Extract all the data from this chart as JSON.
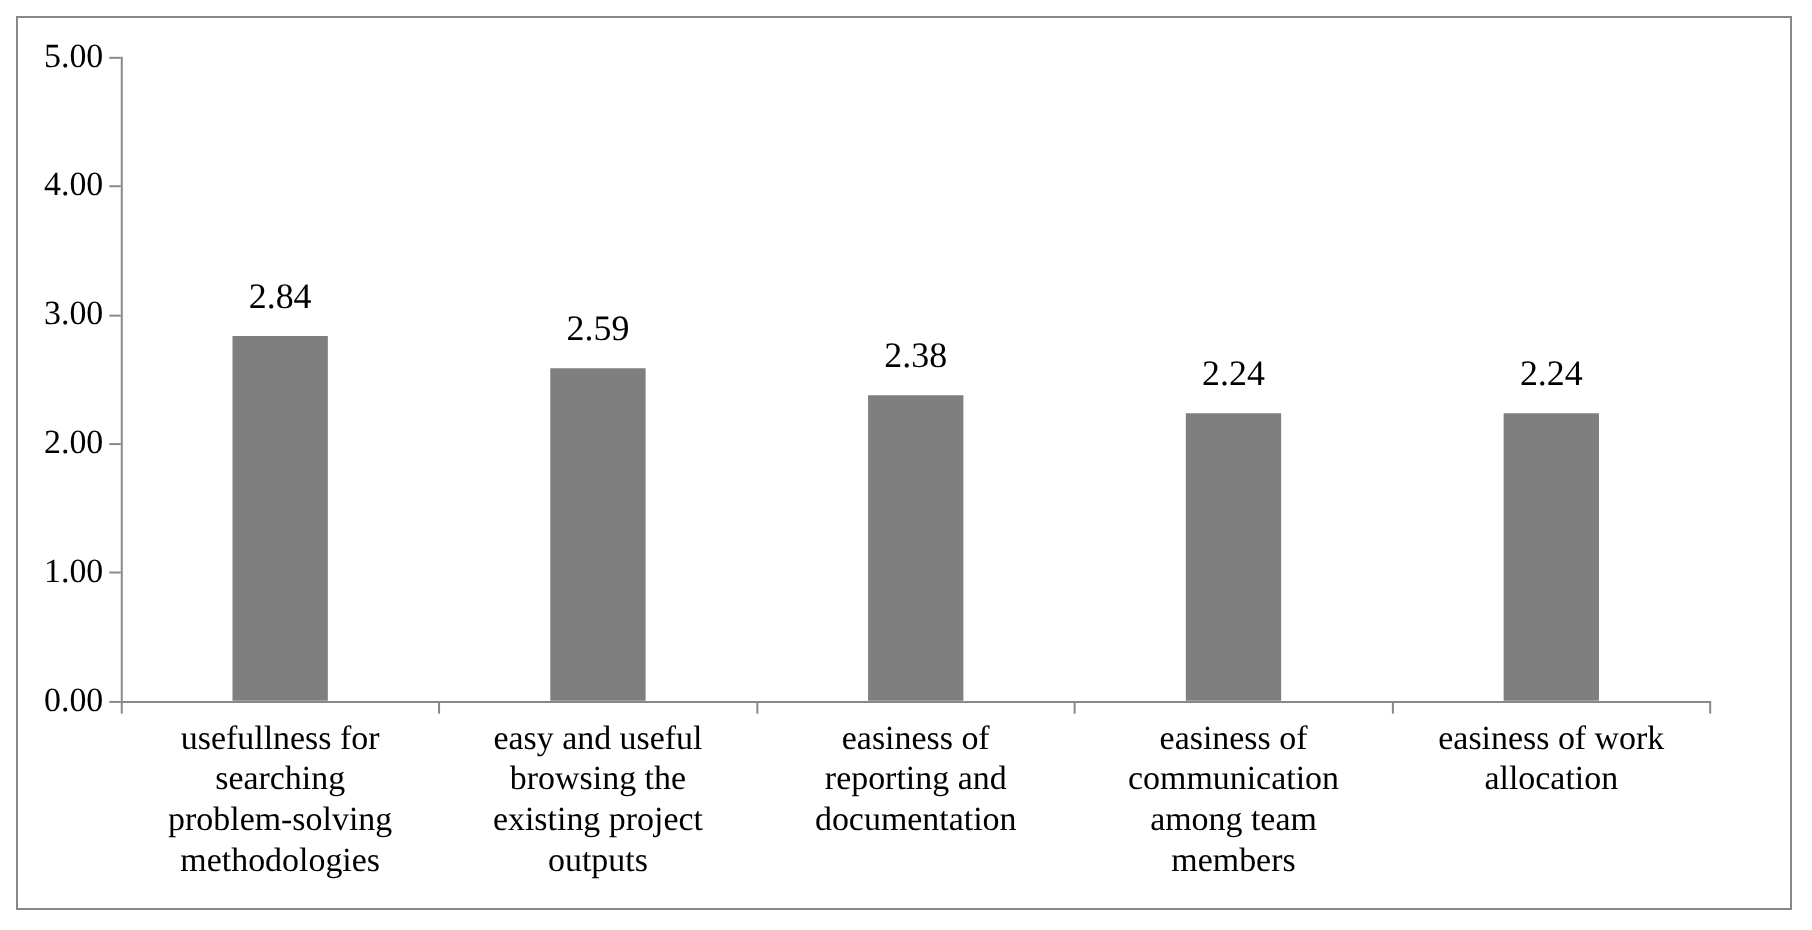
{
  "chart_data": {
    "type": "bar",
    "categories": [
      "usefullness for searching problem-solving methodologies",
      "easy and useful browsing the existing project outputs",
      "easiness of reporting and documentation",
      "easiness of communication among team members",
      "easiness of work allocation"
    ],
    "values": [
      2.84,
      2.59,
      2.38,
      2.24,
      2.24
    ],
    "color": "#7f7f7f",
    "ylim": [
      0,
      5
    ],
    "yticks": [
      {
        "value": 0,
        "label": "0.00"
      },
      {
        "value": 1,
        "label": "1.00"
      },
      {
        "value": 2,
        "label": "2.00"
      },
      {
        "value": 3,
        "label": "3.00"
      },
      {
        "value": 4,
        "label": "4.00"
      },
      {
        "value": 5,
        "label": "5.00"
      }
    ],
    "grid": false,
    "legend": false,
    "data_labels": true
  }
}
